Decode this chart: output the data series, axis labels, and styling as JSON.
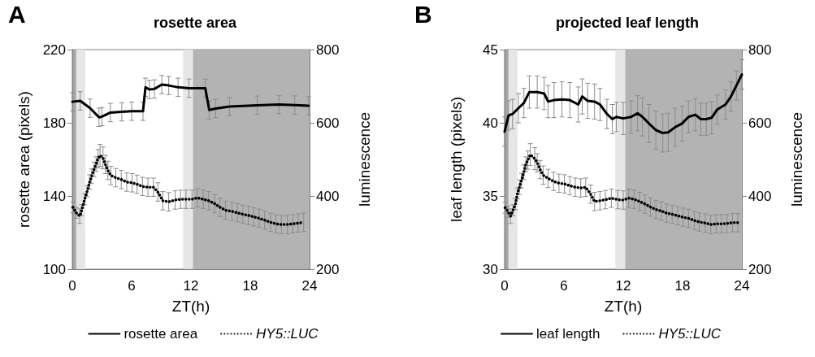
{
  "chart_data": [
    {
      "type": "line",
      "title": "rosette area",
      "annotations": [
        "A"
      ],
      "xlabel": "ZT(h)",
      "ylabel": "rosette area (pixels)",
      "y2label": "luminescence",
      "xlim": [
        0,
        24
      ],
      "xticks": [
        0,
        6,
        12,
        18,
        24
      ],
      "ylim": [
        100,
        220
      ],
      "yticks": [
        100,
        140,
        180,
        220
      ],
      "y2lim": [
        200,
        800
      ],
      "y2ticks": [
        200,
        400,
        600,
        800
      ],
      "grid": false,
      "legend": "bottom",
      "marker": "none",
      "bands": [
        {
          "axis": "x",
          "from": 0,
          "to": 0.4,
          "color": "#a6a6a6"
        },
        {
          "axis": "x",
          "from": 0.4,
          "to": 1.3,
          "color": "#e6e6e6"
        },
        {
          "axis": "x",
          "from": 11.2,
          "to": 12.2,
          "color": "#e6e6e6"
        },
        {
          "axis": "x",
          "from": 12.2,
          "to": 24,
          "color": "#b3b3b3"
        }
      ],
      "series": [
        {
          "name": "rosette area",
          "color": "#000000",
          "line_style": "solid",
          "x": [
            0,
            0.8,
            1.8,
            2.7,
            3.0,
            3.85,
            5,
            6,
            7.15,
            7.4,
            7.8,
            8.3,
            9.05,
            9.75,
            10.7,
            11.8,
            13.45,
            13.85,
            14.5,
            15.9,
            18.7,
            20.9,
            22.5,
            23.9
          ],
          "values": [
            191.5,
            192,
            188,
            183,
            183.4,
            185.6,
            186,
            186.3,
            186.3,
            199.4,
            198.2,
            198.5,
            200.9,
            200.4,
            199.4,
            198.9,
            198.9,
            187,
            187.8,
            188.9,
            189.6,
            190,
            189.7,
            189.3
          ],
          "errors": [
            5,
            5,
            5,
            5,
            5,
            5,
            5,
            5,
            5,
            5,
            5,
            5,
            5,
            5,
            5,
            5,
            5,
            5,
            5,
            5,
            5,
            5,
            5,
            5
          ]
        },
        {
          "name": "HY5::LUC",
          "color": "#000000",
          "line_style": "dotted",
          "axis": "y2",
          "x": [
            0.05,
            0.4,
            0.75,
            0.95,
            1.25,
            1.5,
            1.75,
            1.95,
            2.2,
            2.4,
            2.6,
            2.8,
            3.1,
            3.35,
            3.6,
            3.9,
            4.4,
            4.95,
            5.5,
            6.05,
            6.55,
            7.1,
            7.65,
            8.2,
            8.65,
            9.15,
            9.75,
            10.4,
            10.95,
            11.5,
            12.1,
            12.65,
            13.25,
            13.8,
            14.4,
            14.95,
            15.5,
            16.15,
            16.7,
            17.25,
            17.8,
            18.35,
            18.9,
            19.45,
            20.05,
            20.6,
            21.15,
            21.75,
            22.3,
            22.85,
            23.4
          ],
          "values": [
            369,
            354,
            345,
            361,
            391,
            413,
            438,
            454,
            473,
            487,
            502,
            511,
            504,
            486,
            470,
            456,
            450,
            445,
            438,
            436,
            432,
            426,
            424,
            424,
            411,
            387,
            384,
            389,
            391,
            391,
            391,
            395,
            391,
            387,
            379,
            369,
            361,
            358,
            354,
            350,
            347,
            343,
            339,
            334,
            328,
            324,
            322,
            322,
            324,
            326,
            328
          ],
          "errors": [
            15,
            15,
            20,
            15,
            15,
            15,
            20,
            20,
            20,
            20,
            25,
            30,
            30,
            25,
            25,
            25,
            25,
            25,
            25,
            25,
            25,
            25,
            25,
            25,
            25,
            25,
            25,
            25,
            25,
            25,
            25,
            25,
            25,
            25,
            25,
            25,
            25,
            25,
            25,
            25,
            25,
            25,
            25,
            25,
            25,
            25,
            25,
            25,
            25,
            25,
            25
          ]
        }
      ]
    },
    {
      "type": "line",
      "title": "projected leaf length",
      "annotations": [
        "B"
      ],
      "xlabel": "ZT(h)",
      "ylabel": "leaf length (pixels)",
      "y2label": "luminescence",
      "xlim": [
        0,
        24
      ],
      "xticks": [
        0,
        6,
        12,
        18,
        24
      ],
      "ylim": [
        30,
        45
      ],
      "yticks": [
        30,
        35,
        40,
        45
      ],
      "y2lim": [
        200,
        800
      ],
      "y2ticks": [
        200,
        400,
        600,
        800
      ],
      "grid": false,
      "legend": "bottom",
      "marker": "none",
      "bands": [
        {
          "axis": "x",
          "from": 0,
          "to": 0.4,
          "color": "#a6a6a6"
        },
        {
          "axis": "x",
          "from": 0.4,
          "to": 1.3,
          "color": "#e6e6e6"
        },
        {
          "axis": "x",
          "from": 11.2,
          "to": 12.2,
          "color": "#e6e6e6"
        },
        {
          "axis": "x",
          "from": 12.2,
          "to": 24,
          "color": "#b3b3b3"
        }
      ],
      "series": [
        {
          "name": "leaf length",
          "color": "#000000",
          "line_style": "solid",
          "x": [
            0,
            0.4,
            0.8,
            1.4,
            1.95,
            2.5,
            3.3,
            4.0,
            4.4,
            5.0,
            5.8,
            6.6,
            7.45,
            7.85,
            8.4,
            9.1,
            9.65,
            10.35,
            10.9,
            11.3,
            12.0,
            12.8,
            13.45,
            13.95,
            14.6,
            15.3,
            16.0,
            16.55,
            17.25,
            17.95,
            18.6,
            19.3,
            19.85,
            20.4,
            20.95,
            21.5,
            22.35,
            22.9,
            23.45,
            24
          ],
          "values": [
            39.4,
            40.5,
            40.6,
            41.0,
            41.35,
            42.1,
            42.1,
            42.0,
            41.45,
            41.55,
            41.6,
            41.55,
            41.25,
            41.8,
            41.5,
            41.45,
            41.25,
            40.6,
            40.25,
            40.4,
            40.3,
            40.4,
            40.65,
            40.4,
            39.95,
            39.5,
            39.3,
            39.35,
            39.7,
            39.95,
            40.4,
            40.55,
            40.25,
            40.25,
            40.35,
            40.9,
            41.25,
            41.8,
            42.55,
            43.3
          ],
          "errors": [
            1,
            1,
            1,
            1,
            1,
            1.1,
            1.1,
            1.1,
            1.1,
            1.2,
            1.2,
            1.2,
            1.2,
            1.2,
            1.2,
            1.2,
            1.1,
            1,
            1,
            1,
            1.1,
            1.1,
            1.2,
            1.3,
            1.3,
            1.3,
            1.3,
            1.3,
            1.3,
            1.2,
            1.1,
            1.1,
            1.1,
            1.1,
            1.1,
            1,
            1,
            1,
            1,
            1
          ]
        },
        {
          "name": "HY5::LUC",
          "color": "#000000",
          "line_style": "dotted",
          "axis": "y2",
          "x": [
            0.05,
            0.35,
            0.6,
            0.85,
            1.1,
            1.3,
            1.5,
            1.7,
            1.95,
            2.15,
            2.35,
            2.6,
            3.05,
            3.3,
            3.6,
            3.9,
            4.4,
            4.95,
            5.5,
            6.05,
            6.6,
            7.15,
            7.7,
            8.2,
            8.7,
            9.1,
            9.65,
            10.2,
            10.8,
            11.45,
            12.0,
            12.55,
            13.1,
            13.65,
            14.2,
            14.75,
            15.3,
            15.85,
            16.4,
            16.95,
            17.5,
            18.05,
            18.6,
            19.2,
            19.7,
            20.3,
            20.85,
            21.4,
            21.95,
            22.5,
            23.05,
            23.6
          ],
          "values": [
            368,
            357,
            345,
            361,
            378,
            407,
            424,
            442,
            465,
            487,
            498,
            513,
            502,
            491,
            472,
            457,
            448,
            440,
            435,
            433,
            428,
            424,
            422,
            424,
            405,
            385,
            387,
            390,
            394,
            390,
            389,
            394,
            391,
            385,
            378,
            370,
            363,
            359,
            353,
            350,
            346,
            342,
            339,
            333,
            329,
            326,
            322,
            324,
            324,
            325,
            327,
            327
          ],
          "errors": [
            15,
            15,
            20,
            15,
            15,
            15,
            20,
            20,
            20,
            20,
            25,
            30,
            30,
            25,
            25,
            25,
            25,
            25,
            25,
            25,
            25,
            25,
            25,
            25,
            25,
            25,
            25,
            25,
            25,
            25,
            25,
            25,
            25,
            25,
            25,
            25,
            25,
            25,
            25,
            25,
            25,
            25,
            25,
            25,
            25,
            25,
            25,
            25,
            25,
            25,
            25,
            25
          ]
        }
      ]
    }
  ]
}
